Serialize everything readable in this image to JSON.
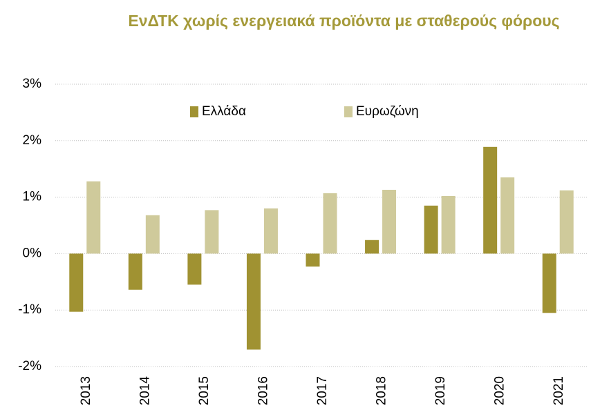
{
  "chart_data": {
    "type": "bar",
    "title": "ΕνΔΤΚ χωρίς ενεργειακά προϊόντα με σταθερούς φόρους",
    "categories": [
      "2013",
      "2014",
      "2015",
      "2016",
      "2017",
      "2018",
      "2019",
      "2020",
      "2021"
    ],
    "series": [
      {
        "name": "Ελλάδα",
        "color": "#a09232",
        "values": [
          -1.03,
          -0.64,
          -0.55,
          -1.7,
          -0.23,
          0.24,
          0.85,
          1.89,
          -1.05
        ]
      },
      {
        "name": "Ευρωζώνη",
        "color": "#cfca9b",
        "values": [
          1.28,
          0.68,
          0.77,
          0.8,
          1.07,
          1.13,
          1.02,
          1.35,
          1.12
        ]
      }
    ],
    "ylim": [
      -2,
      3
    ],
    "yticks": [
      {
        "value": -2,
        "label": "-2%"
      },
      {
        "value": -1,
        "label": "-1%"
      },
      {
        "value": 0,
        "label": "0%"
      },
      {
        "value": 1,
        "label": "1%"
      },
      {
        "value": 2,
        "label": "2%"
      },
      {
        "value": 3,
        "label": "3%"
      }
    ],
    "grid": true,
    "legend": "top"
  }
}
